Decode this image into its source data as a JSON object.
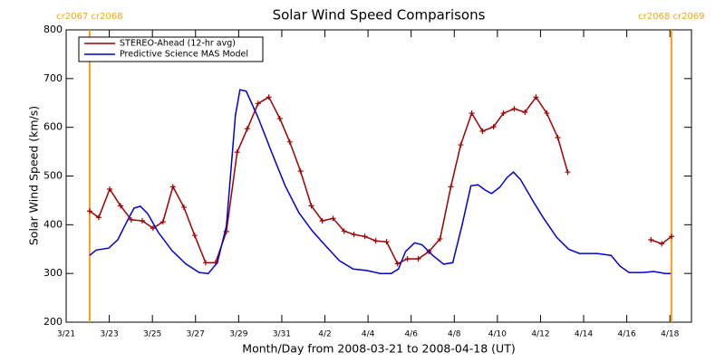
{
  "chart_data": {
    "type": "line",
    "title": "Solar Wind Speed Comparisons",
    "y_label": "Solar Wind Speed (km/s)",
    "x_label": "Month/Day from 2008-03-21 to 2008-04-18 (UT)",
    "xlim": [
      0,
      29
    ],
    "xticks": [
      {
        "value": 0,
        "label": "3/21"
      },
      {
        "value": 2,
        "label": "3/23"
      },
      {
        "value": 4,
        "label": "3/25"
      },
      {
        "value": 6,
        "label": "3/27"
      },
      {
        "value": 8,
        "label": "3/29"
      },
      {
        "value": 10,
        "label": "3/31"
      },
      {
        "value": 12,
        "label": "4/2"
      },
      {
        "value": 14,
        "label": "4/4"
      },
      {
        "value": 16,
        "label": "4/6"
      },
      {
        "value": 18,
        "label": "4/8"
      },
      {
        "value": 20,
        "label": "4/10"
      },
      {
        "value": 22,
        "label": "4/12"
      },
      {
        "value": 24,
        "label": "4/14"
      },
      {
        "value": 26,
        "label": "4/16"
      },
      {
        "value": 28,
        "label": "4/18"
      }
    ],
    "ylim": [
      200,
      800
    ],
    "yticks": [
      200,
      300,
      400,
      500,
      600,
      700,
      800
    ],
    "legend": "top-left",
    "markers": [
      {
        "x": 1.09,
        "label": "cr2067 cr2068",
        "color": "#f7a020"
      },
      {
        "x": 28.07,
        "label": "cr2068 cr2069",
        "color": "#f7a020"
      }
    ],
    "series": [
      {
        "name": "STEREO-Ahead (12-hr avg)",
        "color": "#a00000",
        "symbol": "+",
        "x": [
          1.09,
          1.51,
          2.02,
          2.52,
          3.02,
          3.53,
          4.03,
          4.49,
          4.95,
          5.46,
          5.96,
          6.47,
          6.93,
          7.43,
          7.93,
          8.4,
          8.9,
          9.4,
          9.91,
          10.37,
          10.87,
          11.37,
          11.88,
          12.38,
          12.89,
          13.35,
          13.85,
          14.36,
          14.86,
          15.37,
          15.83,
          16.33,
          16.83,
          17.34,
          17.84,
          18.3,
          18.81,
          19.31,
          19.82,
          20.28,
          20.78,
          21.28,
          21.79,
          22.29,
          22.8,
          23.26,
          25.2,
          27.12,
          27.62,
          28.08
        ],
        "values": [
          428,
          415,
          473,
          439,
          410,
          408,
          393,
          406,
          478,
          436,
          378,
          322,
          322,
          386,
          549,
          597,
          649,
          662,
          618,
          570,
          510,
          439,
          408,
          413,
          387,
          380,
          376,
          367,
          365,
          320,
          330,
          330,
          345,
          371,
          478,
          564,
          629,
          592,
          601,
          629,
          638,
          631,
          662,
          629,
          579,
          508,
          null,
          369,
          361,
          376
        ]
      },
      {
        "name": "Predictive Science MAS Model",
        "color": "#0000d0",
        "x": [
          1.09,
          1.39,
          1.97,
          2.39,
          2.81,
          3.15,
          3.44,
          3.78,
          4.28,
          4.91,
          5.54,
          6.17,
          6.59,
          7.01,
          7.43,
          7.85,
          8.06,
          8.35,
          8.9,
          9.53,
          10.16,
          10.79,
          11.42,
          12.05,
          12.68,
          13.31,
          13.94,
          14.57,
          15.07,
          15.41,
          15.74,
          16.16,
          16.5,
          17.0,
          17.51,
          17.93,
          18.35,
          18.77,
          19.1,
          19.44,
          19.73,
          20.11,
          20.45,
          20.74,
          21.07,
          21.7,
          22.12,
          22.75,
          23.3,
          23.8,
          24.64,
          25.27,
          25.69,
          26.11,
          26.74,
          27.25,
          27.79,
          28.04
        ],
        "values": [
          337,
          348,
          352,
          369,
          406,
          434,
          438,
          423,
          384,
          347,
          320,
          302,
          300,
          322,
          397,
          625,
          677,
          674,
          620,
          549,
          480,
          425,
          387,
          356,
          326,
          309,
          306,
          300,
          300,
          309,
          345,
          363,
          359,
          337,
          319,
          322,
          397,
          480,
          482,
          471,
          464,
          477,
          497,
          508,
          493,
          445,
          415,
          374,
          350,
          341,
          341,
          337,
          315,
          302,
          302,
          304,
          300,
          300
        ]
      }
    ]
  }
}
